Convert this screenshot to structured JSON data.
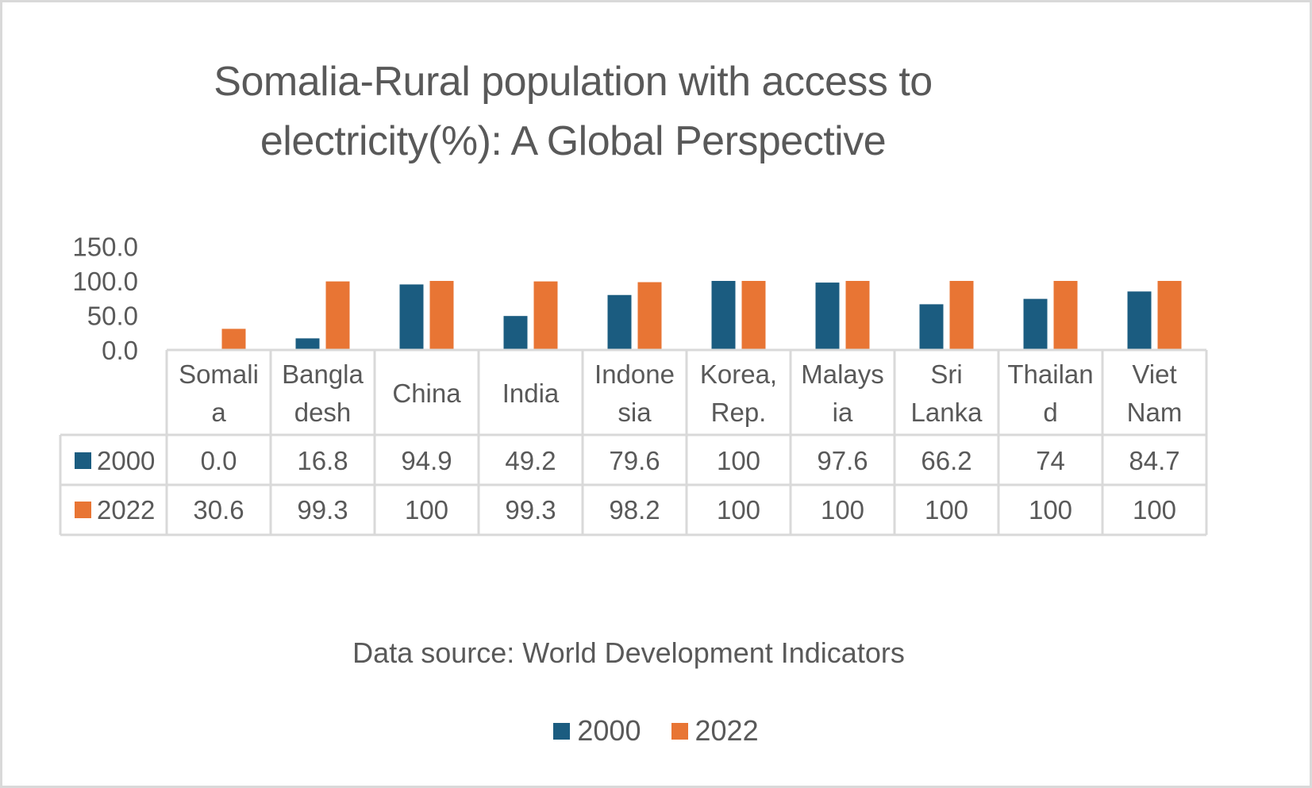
{
  "chart_data": {
    "type": "bar",
    "title": "Somalia-Rural population with access to electricity(%): A Global Perspective",
    "title_lines": [
      "Somalia-Rural population with access to",
      "electricity(%): A Global Perspective"
    ],
    "xlabel": "",
    "ylabel": "",
    "ylim": [
      0,
      150
    ],
    "yticks": [
      "0.0",
      "50.0",
      "100.0",
      "150.0"
    ],
    "ytick_values": [
      0,
      50,
      100,
      150
    ],
    "grid": false,
    "categories": [
      "Somalia",
      "Bangladesh",
      "China",
      "India",
      "Indonesia",
      "Korea, Rep.",
      "Malaysia",
      "Sri Lanka",
      "Thailand",
      "Viet Nam"
    ],
    "category_label_lines": [
      [
        "Somali",
        "a"
      ],
      [
        "Bangla",
        "desh"
      ],
      [
        "China"
      ],
      [
        "India"
      ],
      [
        "Indone",
        "sia"
      ],
      [
        "Korea,",
        "Rep."
      ],
      [
        "Malays",
        "ia"
      ],
      [
        "Sri",
        "Lanka"
      ],
      [
        "Thailan",
        "d"
      ],
      [
        "Viet",
        "Nam"
      ]
    ],
    "series": [
      {
        "name": "2000",
        "color": "#1b5c80",
        "values": [
          0.0,
          16.8,
          94.9,
          49.2,
          79.6,
          100,
          97.6,
          66.2,
          74,
          84.7
        ],
        "labels": [
          "0.0",
          "16.8",
          "94.9",
          "49.2",
          "79.6",
          "100",
          "97.6",
          "66.2",
          "74",
          "84.7"
        ]
      },
      {
        "name": "2022",
        "color": "#e87534",
        "values": [
          30.6,
          99.3,
          100,
          99.3,
          98.2,
          100,
          100,
          100,
          100,
          100
        ],
        "labels": [
          "30.6",
          "99.3",
          "100",
          "99.3",
          "98.2",
          "100",
          "100",
          "100",
          "100",
          "100"
        ]
      }
    ],
    "data_table": true,
    "legend_position": "bottom",
    "source_note": "Data source:  World Development Indicators"
  },
  "colors": {
    "text": "#595959",
    "grid_border": "#d9d9d9",
    "series_2000": "#1b5c80",
    "series_2022": "#e87534"
  }
}
